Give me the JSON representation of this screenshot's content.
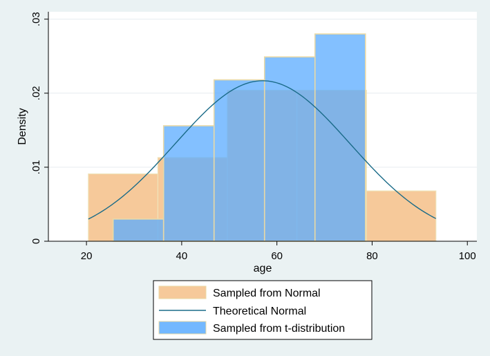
{
  "chart_data": {
    "type": "histogram",
    "xlabel": "age",
    "ylabel": "Density",
    "xlim": [
      12,
      102
    ],
    "ylim": [
      0,
      0.031
    ],
    "x_ticks": [
      20,
      40,
      60,
      80,
      100
    ],
    "y_ticks": [
      0,
      0.01,
      0.02,
      0.03
    ],
    "x_tick_labels": [
      "20",
      "40",
      "60",
      "80",
      "100"
    ],
    "y_tick_labels": [
      "0",
      ".01",
      ".02",
      ".03"
    ],
    "grid": true,
    "legend_position": "bottom",
    "series": [
      {
        "name": "Sampled from Normal",
        "kind": "histogram",
        "color": "#f6c99a",
        "bins": [
          {
            "x0": 20.4,
            "x1": 35.0,
            "density": 0.0091
          },
          {
            "x0": 35.0,
            "x1": 49.6,
            "density": 0.0113
          },
          {
            "x0": 49.6,
            "x1": 64.2,
            "density": 0.0204
          },
          {
            "x0": 64.2,
            "x1": 78.8,
            "density": 0.0204
          },
          {
            "x0": 78.8,
            "x1": 93.4,
            "density": 0.0068
          }
        ]
      },
      {
        "name": "Sampled from t-distribution",
        "kind": "histogram",
        "color": "#5aabff",
        "bins": [
          {
            "x0": 25.6,
            "x1": 36.2,
            "density": 0.003
          },
          {
            "x0": 36.2,
            "x1": 46.8,
            "density": 0.0156
          },
          {
            "x0": 46.8,
            "x1": 57.4,
            "density": 0.0218
          },
          {
            "x0": 57.4,
            "x1": 68.0,
            "density": 0.0249
          },
          {
            "x0": 68.0,
            "x1": 78.6,
            "density": 0.028
          }
        ]
      },
      {
        "name": "Theoretical Normal",
        "kind": "line",
        "color": "#1a6b88",
        "mean": 57.0,
        "sd": 18.4,
        "x_range": [
          20.4,
          93.4
        ]
      }
    ],
    "legend_order": [
      "Sampled from Normal",
      "Theoretical Normal",
      "Sampled from t-distribution"
    ]
  }
}
